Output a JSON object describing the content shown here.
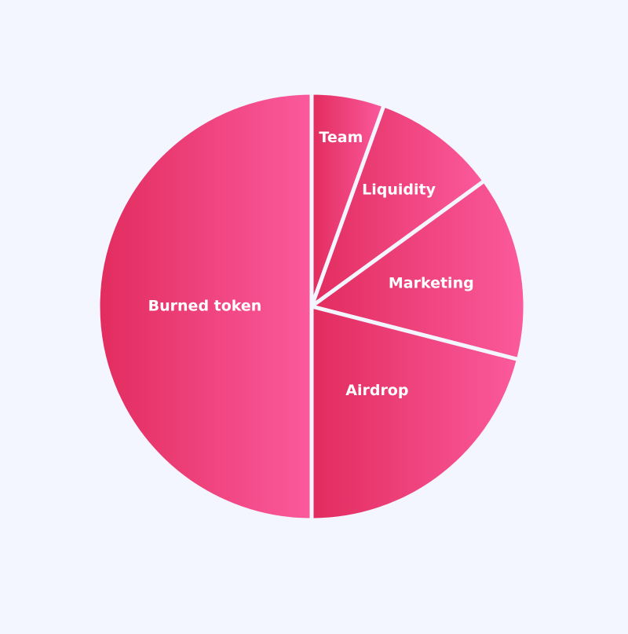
{
  "chart_data": {
    "type": "pie",
    "title": "",
    "start": "top",
    "direction": "clockwise",
    "slices": [
      {
        "label": "Team",
        "value": 5.5
      },
      {
        "label": "Liquidity",
        "value": 9.5
      },
      {
        "label": "Marketing",
        "value": 14
      },
      {
        "label": "Airdrop",
        "value": 21
      },
      {
        "label": "Burned token",
        "value": 50
      }
    ],
    "colors": {
      "gradient_start": "#e22c5e",
      "gradient_end": "#fb5a9d",
      "separator": "#f3f6ff",
      "label": "#ffffff"
    }
  }
}
